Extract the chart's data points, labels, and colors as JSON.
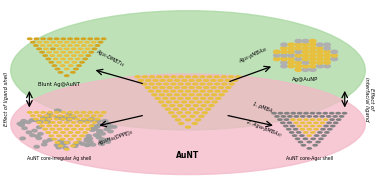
{
  "fig_width": 3.77,
  "fig_height": 1.89,
  "dpi": 100,
  "bg_color": "#ffffff",
  "green_blob_color": "#a8d8a0",
  "pink_blob_color": "#f4b8c8",
  "green_blob_alpha": 0.75,
  "pink_blob_alpha": 0.75,
  "gold_color": "#d4a520",
  "gold_light": "#e8c040",
  "gold_dark": "#b88c10",
  "silver_color": "#c0c0c0",
  "silver_dark": "#909090",
  "label_center": "AuNT",
  "label_tl": "Blunt Ag@AuNT",
  "label_tr": "Ag@AuNP",
  "label_bl": "AuNT core-irregular Ag shell",
  "label_br": "AuNT core-Ag₄₄ shell",
  "label_left": "Effect of ligand shell",
  "label_right": "Effect of\ninterfacial ligand",
  "arrow_tl": "Ag₂₆-DMBT₁₆",
  "arrow_tr": "Ag₂₆-pMBA₂₆",
  "arrow_bl": "Ag₂₅H₁₆(DPPE)₈",
  "arrow_br1": "1. pMBA",
  "arrow_br2": "2. Ag₄₄-pMBA₃₀"
}
